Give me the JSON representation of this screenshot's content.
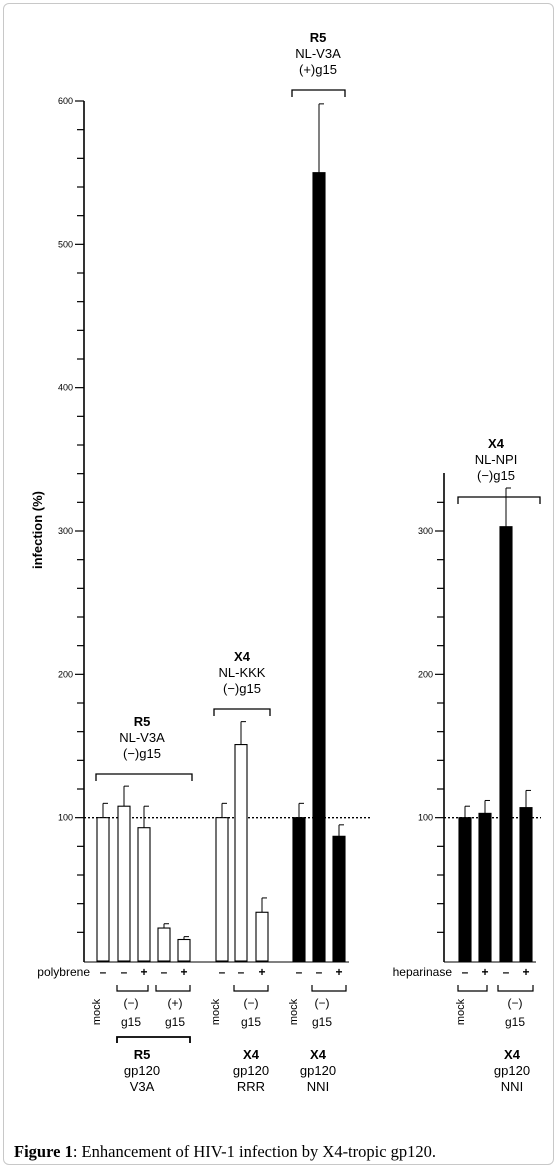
{
  "caption": {
    "label": "Figure 1",
    "text": ": Enhancement of HIV-1 infection by X4-tropic gp120."
  },
  "colors": {
    "filled_bar": "#000000",
    "open_bar": "#ffffff",
    "axis": "#000000"
  },
  "chart_data": [
    {
      "type": "bar",
      "ylabel": "infection (%)",
      "ylim": [
        0,
        600
      ],
      "yticks": [
        100,
        200,
        300,
        400,
        500,
        600
      ],
      "treatment_label": "polybrene",
      "reference_line": 100,
      "bars": [
        {
          "group": "R5 NL-V3A (−)g15",
          "treatment": "–",
          "value": 100,
          "error": 10,
          "fill": "open"
        },
        {
          "group": "R5 NL-V3A (−)g15",
          "treatment": "–",
          "value": 108,
          "error": 14,
          "fill": "open"
        },
        {
          "group": "R5 NL-V3A (−)g15",
          "treatment": "+",
          "value": 93,
          "error": 15,
          "fill": "open"
        },
        {
          "group": "R5 NL-V3A (−)g15",
          "treatment": "–",
          "value": 23,
          "error": 3,
          "fill": "open"
        },
        {
          "group": "R5 NL-V3A (−)g15",
          "treatment": "+",
          "value": 15,
          "error": 2,
          "fill": "open"
        },
        {
          "group": "X4 NL-KKK (−)g15",
          "treatment": "–",
          "value": 100,
          "error": 10,
          "fill": "open"
        },
        {
          "group": "X4 NL-KKK (−)g15",
          "treatment": "–",
          "value": 151,
          "error": 16,
          "fill": "open"
        },
        {
          "group": "X4 NL-KKK (−)g15",
          "treatment": "+",
          "value": 34,
          "error": 10,
          "fill": "open"
        },
        {
          "group": "R5 NL-V3A (+)g15",
          "treatment": "–",
          "value": 100,
          "error": 10,
          "fill": "filled"
        },
        {
          "group": "R5 NL-V3A (+)g15",
          "treatment": "–",
          "value": 550,
          "error": 48,
          "fill": "filled"
        },
        {
          "group": "R5 NL-V3A (+)g15",
          "treatment": "+",
          "value": 87,
          "error": 8,
          "fill": "filled"
        }
      ],
      "group_headers": [
        {
          "bold": "R5",
          "lines": [
            "NL-V3A",
            "(−)g15"
          ]
        },
        {
          "bold": "X4",
          "lines": [
            "NL-KKK",
            "(−)g15"
          ]
        },
        {
          "bold": "R5",
          "lines": [
            "NL-V3A",
            "(+)g15"
          ]
        }
      ],
      "bottom_labels": [
        {
          "bold": "R5",
          "lines": [
            "gp120",
            "V3A"
          ]
        },
        {
          "bold": "X4",
          "lines": [
            "gp120",
            "RRR"
          ]
        },
        {
          "bold": "X4",
          "lines": [
            "gp120",
            "NNI"
          ]
        }
      ],
      "condition_labels": [
        {
          "text": "mock",
          "rotated": true
        },
        {
          "text": "(−)",
          "sub": "g15"
        },
        {
          "text": "(+)",
          "sub": "g15"
        },
        {
          "text": "mock",
          "rotated": true
        },
        {
          "text": "(−)",
          "sub": "g15"
        },
        {
          "text": "mock",
          "rotated": true
        },
        {
          "text": "(−)",
          "sub": "g15"
        }
      ]
    },
    {
      "type": "bar",
      "ylabel": "",
      "ylim": [
        0,
        330
      ],
      "yticks": [
        100,
        200,
        300
      ],
      "treatment_label": "heparinase",
      "reference_line": 100,
      "bars": [
        {
          "group": "X4 NL-NPI (−)g15",
          "treatment": "–",
          "value": 100,
          "error": 8,
          "fill": "filled"
        },
        {
          "group": "X4 NL-NPI (−)g15",
          "treatment": "+",
          "value": 103,
          "error": 9,
          "fill": "filled"
        },
        {
          "group": "X4 NL-NPI (−)g15",
          "treatment": "–",
          "value": 303,
          "error": 27,
          "fill": "filled"
        },
        {
          "group": "X4 NL-NPI (−)g15",
          "treatment": "+",
          "value": 107,
          "error": 12,
          "fill": "filled"
        }
      ],
      "group_headers": [
        {
          "bold": "X4",
          "lines": [
            "NL-NPI",
            "(−)g15"
          ]
        }
      ],
      "bottom_labels": [
        {
          "bold": "X4",
          "lines": [
            "gp120",
            "NNI"
          ]
        }
      ],
      "condition_labels": [
        {
          "text": "mock",
          "rotated": true
        },
        {
          "text": "(−)",
          "sub": "g15"
        }
      ]
    }
  ]
}
